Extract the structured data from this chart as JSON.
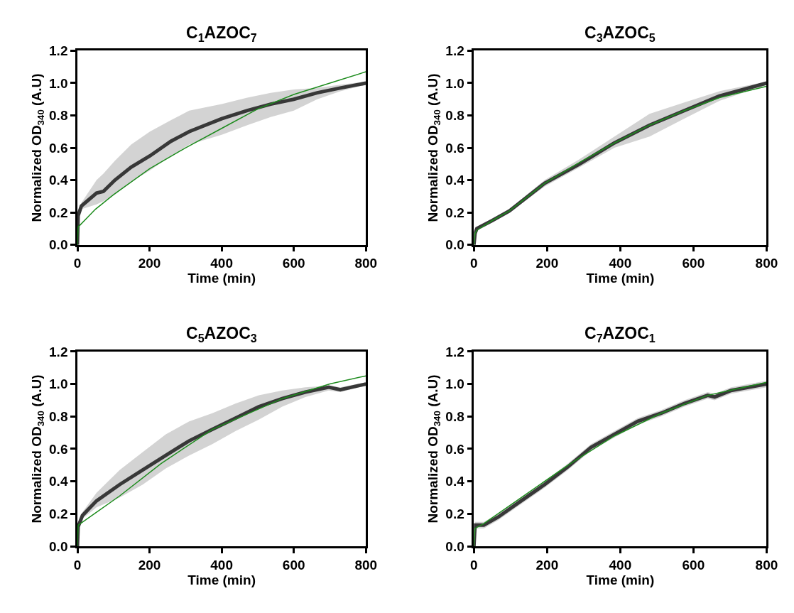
{
  "chart_data": [
    {
      "type": "line",
      "title": "C$_{1}$AZOC$_{7}$",
      "xlabel": "Time (min)",
      "ylabel": "Normalized OD$_{340}$ (A.U)",
      "xlim": [
        0,
        800
      ],
      "xticks": [
        0,
        200,
        400,
        600,
        800
      ],
      "ylim": [
        0,
        1.2
      ],
      "yticks": [
        {
          "value": 0,
          "label": "0.0"
        },
        {
          "value": 0.2,
          "label": "0.2"
        },
        {
          "value": 0.4,
          "label": "0.4"
        },
        {
          "value": 0.6,
          "label": "0.6"
        },
        {
          "value": 0.8,
          "label": "0.8"
        },
        {
          "value": 1.0,
          "label": "1.0"
        },
        {
          "value": 1.2,
          "label": "1.2"
        }
      ],
      "marker": "none",
      "series": [
        {
          "color": "#383838",
          "x": [
            0,
            2,
            11,
            53,
            72,
            104,
            149,
            201,
            259,
            310,
            400,
            471,
            536,
            600,
            665,
            729,
            800
          ],
          "values": [
            0,
            0.18,
            0.24,
            0.32,
            0.33,
            0.4,
            0.48,
            0.55,
            0.64,
            0.7,
            0.78,
            0.83,
            0.87,
            0.9,
            0.94,
            0.97,
            1.0
          ],
          "lower": [
            0,
            0.17,
            0.22,
            0.25,
            0.27,
            0.31,
            0.39,
            0.46,
            0.55,
            0.62,
            0.68,
            0.74,
            0.79,
            0.83,
            0.9,
            0.95,
            0.99
          ],
          "upper": [
            0,
            0.19,
            0.26,
            0.4,
            0.44,
            0.52,
            0.62,
            0.7,
            0.77,
            0.83,
            0.87,
            0.91,
            0.94,
            0.96,
            0.97,
            0.99,
            1.01
          ]
        },
        {
          "color": "#1e8c1e",
          "x": [
            0,
            2,
            50,
            100,
            150,
            200,
            300,
            400,
            500,
            600,
            700,
            800
          ],
          "values": [
            0,
            0.11,
            0.22,
            0.31,
            0.39,
            0.47,
            0.6,
            0.72,
            0.84,
            0.93,
            1.0,
            1.07
          ]
        }
      ]
    },
    {
      "type": "line",
      "title": "C$_{3}$AZOC$_{5}$",
      "xlabel": "Time (min)",
      "ylabel": "Normalized OD$_{340}$ (A.U)",
      "xlim": [
        0,
        800
      ],
      "xticks": [
        0,
        200,
        400,
        600,
        800
      ],
      "ylim": [
        0,
        1.2
      ],
      "yticks": [
        {
          "value": 0,
          "label": "0.0"
        },
        {
          "value": 0.2,
          "label": "0.2"
        },
        {
          "value": 0.4,
          "label": "0.4"
        },
        {
          "value": 0.6,
          "label": "0.6"
        },
        {
          "value": 0.8,
          "label": "0.8"
        },
        {
          "value": 1.0,
          "label": "1.0"
        },
        {
          "value": 1.2,
          "label": "1.2"
        }
      ],
      "marker": "none",
      "series": [
        {
          "color": "#383838",
          "x": [
            0,
            3,
            8,
            50,
            97,
            193,
            289,
            384,
            480,
            575,
            671,
            800
          ],
          "values": [
            0,
            0.07,
            0.1,
            0.15,
            0.21,
            0.38,
            0.5,
            0.63,
            0.74,
            0.83,
            0.92,
            1.0
          ],
          "lower": [
            0,
            0.06,
            0.09,
            0.14,
            0.2,
            0.36,
            0.48,
            0.6,
            0.67,
            0.78,
            0.89,
            0.99
          ],
          "upper": [
            0,
            0.08,
            0.11,
            0.16,
            0.22,
            0.4,
            0.53,
            0.67,
            0.81,
            0.88,
            0.95,
            1.01
          ]
        },
        {
          "color": "#1e8c1e",
          "x": [
            0,
            3,
            8,
            50,
            97,
            193,
            289,
            384,
            480,
            575,
            671,
            800
          ],
          "values": [
            0,
            0.07,
            0.09,
            0.15,
            0.21,
            0.38,
            0.51,
            0.63,
            0.74,
            0.83,
            0.91,
            0.98
          ]
        }
      ]
    },
    {
      "type": "line",
      "title": "C$_{5}$AZOC$_{3}$",
      "xlabel": "Time (min)",
      "ylabel": "Normalized OD$_{340}$ (A.U)",
      "xlim": [
        0,
        800
      ],
      "xticks": [
        0,
        200,
        400,
        600,
        800
      ],
      "ylim": [
        0,
        1.2
      ],
      "yticks": [
        {
          "value": 0,
          "label": "0.0"
        },
        {
          "value": 0.2,
          "label": "0.2"
        },
        {
          "value": 0.4,
          "label": "0.4"
        },
        {
          "value": 0.6,
          "label": "0.6"
        },
        {
          "value": 0.8,
          "label": "0.8"
        },
        {
          "value": 1.0,
          "label": "1.0"
        },
        {
          "value": 1.2,
          "label": "1.2"
        }
      ],
      "marker": "none",
      "series": [
        {
          "color": "#383838",
          "x": [
            0,
            2,
            14,
            53,
            117,
            181,
            245,
            310,
            374,
            439,
            503,
            568,
            632,
            697,
            729,
            800
          ],
          "values": [
            0,
            0.12,
            0.19,
            0.28,
            0.38,
            0.47,
            0.56,
            0.65,
            0.72,
            0.79,
            0.86,
            0.91,
            0.95,
            0.98,
            0.965,
            1.0
          ],
          "lower": [
            0,
            0.11,
            0.17,
            0.24,
            0.3,
            0.38,
            0.48,
            0.56,
            0.63,
            0.71,
            0.78,
            0.86,
            0.92,
            0.96,
            0.95,
            0.99
          ],
          "upper": [
            0,
            0.13,
            0.21,
            0.33,
            0.47,
            0.58,
            0.69,
            0.77,
            0.82,
            0.88,
            0.93,
            0.96,
            0.98,
            0.99,
            0.98,
            1.01
          ]
        },
        {
          "color": "#1e8c1e",
          "x": [
            0,
            2,
            53,
            117,
            232,
            374,
            568,
            700,
            800
          ],
          "values": [
            0,
            0.13,
            0.21,
            0.31,
            0.51,
            0.72,
            0.91,
            1.0,
            1.05
          ]
        }
      ]
    },
    {
      "type": "line",
      "title": "C$_{7}$AZOC$_{1}$",
      "xlabel": "Time (min)",
      "ylabel": "Normalized OD$_{340}$ (A.U)",
      "xlim": [
        0,
        800
      ],
      "xticks": [
        0,
        200,
        400,
        600,
        800
      ],
      "ylim": [
        0,
        1.2
      ],
      "yticks": [
        {
          "value": 0,
          "label": "0.0"
        },
        {
          "value": 0.2,
          "label": "0.2"
        },
        {
          "value": 0.4,
          "label": "0.4"
        },
        {
          "value": 0.6,
          "label": "0.6"
        },
        {
          "value": 0.8,
          "label": "0.8"
        },
        {
          "value": 1.0,
          "label": "1.0"
        },
        {
          "value": 1.2,
          "label": "1.2"
        }
      ],
      "marker": "none",
      "series": [
        {
          "color": "#383838",
          "x": [
            0,
            3,
            27,
            66,
            129,
            193,
            257,
            320,
            384,
            448,
            512,
            575,
            639,
            658,
            703,
            800
          ],
          "values": [
            0,
            0.13,
            0.13,
            0.18,
            0.28,
            0.38,
            0.49,
            0.61,
            0.69,
            0.77,
            0.82,
            0.88,
            0.93,
            0.92,
            0.96,
            1.0
          ],
          "lower": [
            0,
            0.11,
            0.11,
            0.16,
            0.26,
            0.36,
            0.47,
            0.59,
            0.67,
            0.75,
            0.8,
            0.86,
            0.91,
            0.9,
            0.94,
            0.98
          ],
          "upper": [
            0,
            0.15,
            0.15,
            0.2,
            0.3,
            0.4,
            0.51,
            0.63,
            0.71,
            0.79,
            0.84,
            0.9,
            0.95,
            0.94,
            0.98,
            1.02
          ]
        },
        {
          "color": "#1e8c1e",
          "x": [
            0,
            3,
            27,
            129,
            257,
            384,
            512,
            639,
            800
          ],
          "values": [
            0,
            0.11,
            0.14,
            0.3,
            0.5,
            0.68,
            0.82,
            0.93,
            1.01
          ]
        }
      ]
    }
  ]
}
